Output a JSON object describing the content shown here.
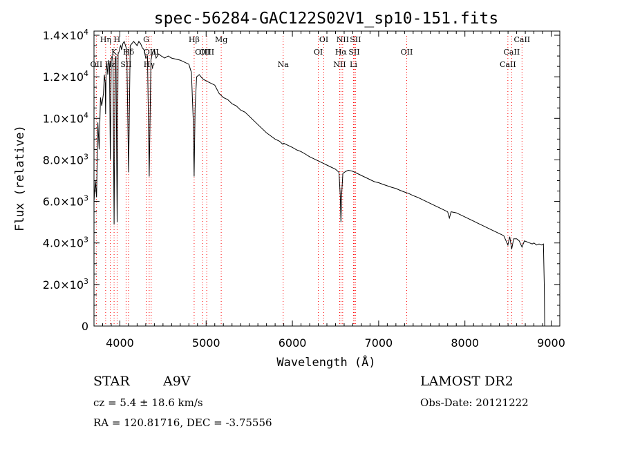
{
  "chart_data": {
    "type": "line",
    "title": "spec-56284-GAC122S02V1_sp10-151.fits",
    "xlabel": "Wavelength (Å)",
    "ylabel": "Flux (relative)",
    "xlim": [
      3700,
      9100
    ],
    "ylim": [
      0,
      14200
    ],
    "xticks": [
      4000,
      5000,
      6000,
      7000,
      8000,
      9000
    ],
    "xtick_labels": [
      "4000",
      "5000",
      "6000",
      "7000",
      "8000",
      "9000"
    ],
    "yticks": [
      0,
      2000,
      4000,
      6000,
      8000,
      10000,
      12000,
      14000
    ],
    "ytick_labels": [
      {
        "mant": "0",
        "exp": ""
      },
      {
        "mant": "2.0×10",
        "exp": "3"
      },
      {
        "mant": "4.0×10",
        "exp": "3"
      },
      {
        "mant": "6.0×10",
        "exp": "3"
      },
      {
        "mant": "8.0×10",
        "exp": "3"
      },
      {
        "mant": "1.0×10",
        "exp": "4"
      },
      {
        "mant": "1.2×10",
        "exp": "4"
      },
      {
        "mant": "1.4×10",
        "exp": "4"
      }
    ],
    "grid": false,
    "series": [
      {
        "color": "#000000",
        "points": [
          [
            3700,
            6000
          ],
          [
            3715,
            7000
          ],
          [
            3730,
            6200
          ],
          [
            3745,
            9800
          ],
          [
            3760,
            8500
          ],
          [
            3775,
            11000
          ],
          [
            3790,
            10600
          ],
          [
            3800,
            10900
          ],
          [
            3810,
            11200
          ],
          [
            3820,
            12100
          ],
          [
            3830,
            11700
          ],
          [
            3835,
            10200
          ],
          [
            3840,
            12300
          ],
          [
            3850,
            12600
          ],
          [
            3860,
            12100
          ],
          [
            3870,
            12800
          ],
          [
            3880,
            12500
          ],
          [
            3889,
            8000
          ],
          [
            3900,
            12900
          ],
          [
            3910,
            13000
          ],
          [
            3920,
            12700
          ],
          [
            3933,
            4900
          ],
          [
            3945,
            12800
          ],
          [
            3955,
            13000
          ],
          [
            3968,
            5000
          ],
          [
            3980,
            13100
          ],
          [
            3990,
            13200
          ],
          [
            4000,
            13400
          ],
          [
            4010,
            13500
          ],
          [
            4020,
            13300
          ],
          [
            4035,
            13600
          ],
          [
            4050,
            13700
          ],
          [
            4065,
            13500
          ],
          [
            4080,
            13300
          ],
          [
            4101,
            7400
          ],
          [
            4120,
            13500
          ],
          [
            4140,
            13600
          ],
          [
            4160,
            13700
          ],
          [
            4180,
            13600
          ],
          [
            4200,
            13500
          ],
          [
            4220,
            13700
          ],
          [
            4240,
            13600
          ],
          [
            4260,
            13400
          ],
          [
            4280,
            13300
          ],
          [
            4300,
            12900
          ],
          [
            4320,
            13000
          ],
          [
            4340,
            7200
          ],
          [
            4360,
            12800
          ],
          [
            4380,
            13200
          ],
          [
            4400,
            13300
          ],
          [
            4420,
            12900
          ],
          [
            4450,
            13100
          ],
          [
            4480,
            13000
          ],
          [
            4520,
            12900
          ],
          [
            4560,
            13000
          ],
          [
            4600,
            12900
          ],
          [
            4650,
            12850
          ],
          [
            4700,
            12800
          ],
          [
            4750,
            12700
          ],
          [
            4800,
            12600
          ],
          [
            4830,
            12200
          ],
          [
            4850,
            10000
          ],
          [
            4861,
            7200
          ],
          [
            4872,
            10500
          ],
          [
            4890,
            12000
          ],
          [
            4920,
            12100
          ],
          [
            4960,
            11900
          ],
          [
            5000,
            11800
          ],
          [
            5050,
            11700
          ],
          [
            5100,
            11600
          ],
          [
            5150,
            11200
          ],
          [
            5200,
            11000
          ],
          [
            5250,
            10900
          ],
          [
            5300,
            10700
          ],
          [
            5350,
            10600
          ],
          [
            5400,
            10400
          ],
          [
            5450,
            10300
          ],
          [
            5500,
            10100
          ],
          [
            5550,
            9900
          ],
          [
            5600,
            9700
          ],
          [
            5650,
            9500
          ],
          [
            5700,
            9300
          ],
          [
            5750,
            9150
          ],
          [
            5800,
            9000
          ],
          [
            5850,
            8900
          ],
          [
            5890,
            8750
          ],
          [
            5900,
            8800
          ],
          [
            5950,
            8700
          ],
          [
            6000,
            8600
          ],
          [
            6050,
            8480
          ],
          [
            6100,
            8400
          ],
          [
            6150,
            8280
          ],
          [
            6200,
            8150
          ],
          [
            6250,
            8050
          ],
          [
            6300,
            7950
          ],
          [
            6350,
            7850
          ],
          [
            6400,
            7750
          ],
          [
            6450,
            7650
          ],
          [
            6500,
            7550
          ],
          [
            6540,
            7400
          ],
          [
            6555,
            6300
          ],
          [
            6563,
            5000
          ],
          [
            6571,
            6300
          ],
          [
            6585,
            7350
          ],
          [
            6620,
            7450
          ],
          [
            6650,
            7500
          ],
          [
            6700,
            7450
          ],
          [
            6750,
            7350
          ],
          [
            6800,
            7250
          ],
          [
            6850,
            7150
          ],
          [
            6900,
            7050
          ],
          [
            6950,
            6950
          ],
          [
            7000,
            6900
          ],
          [
            7050,
            6820
          ],
          [
            7100,
            6750
          ],
          [
            7150,
            6680
          ],
          [
            7200,
            6620
          ],
          [
            7250,
            6530
          ],
          [
            7300,
            6450
          ],
          [
            7350,
            6380
          ],
          [
            7400,
            6280
          ],
          [
            7450,
            6200
          ],
          [
            7500,
            6100
          ],
          [
            7550,
            6000
          ],
          [
            7600,
            5900
          ],
          [
            7650,
            5800
          ],
          [
            7700,
            5700
          ],
          [
            7750,
            5600
          ],
          [
            7800,
            5500
          ],
          [
            7820,
            5200
          ],
          [
            7840,
            5500
          ],
          [
            7900,
            5450
          ],
          [
            7950,
            5350
          ],
          [
            8000,
            5250
          ],
          [
            8050,
            5150
          ],
          [
            8100,
            5050
          ],
          [
            8150,
            4950
          ],
          [
            8200,
            4850
          ],
          [
            8250,
            4750
          ],
          [
            8300,
            4650
          ],
          [
            8350,
            4550
          ],
          [
            8400,
            4450
          ],
          [
            8450,
            4350
          ],
          [
            8498,
            3900
          ],
          [
            8520,
            4300
          ],
          [
            8542,
            3700
          ],
          [
            8565,
            4200
          ],
          [
            8600,
            4200
          ],
          [
            8630,
            4100
          ],
          [
            8662,
            3800
          ],
          [
            8690,
            4100
          ],
          [
            8720,
            4050
          ],
          [
            8750,
            4000
          ],
          [
            8780,
            3950
          ],
          [
            8800,
            4000
          ],
          [
            8830,
            3900
          ],
          [
            8860,
            3950
          ],
          [
            8890,
            3900
          ],
          [
            8910,
            3950
          ],
          [
            8920,
            2000
          ],
          [
            8925,
            0
          ]
        ]
      }
    ],
    "lines": [
      {
        "label": "OII",
        "x": 3727,
        "row": 3
      },
      {
        "label": "Hη",
        "x": 3835,
        "row": 0
      },
      {
        "label": "Hε",
        "x": 3889,
        "row": 3
      },
      {
        "label": "K",
        "x": 3933,
        "row": 1
      },
      {
        "label": "H",
        "x": 3968,
        "row": 0
      },
      {
        "label": "SII",
        "x": 4072,
        "row": 3
      },
      {
        "label": "Hδ",
        "x": 4101,
        "row": 1
      },
      {
        "label": "G",
        "x": 4305,
        "row": 0
      },
      {
        "label": "Hγ",
        "x": 4340,
        "row": 3
      },
      {
        "label": "OIII",
        "x": 4363,
        "row": 1
      },
      {
        "label": "Hβ",
        "x": 4861,
        "row": 0
      },
      {
        "label": "OIII",
        "x": 4959,
        "row": 2
      },
      {
        "label": "OIII",
        "x": 5007,
        "row": 1
      },
      {
        "label": "Mg",
        "x": 5175,
        "row": 0
      },
      {
        "label": "Na",
        "x": 5893,
        "row": 3
      },
      {
        "label": "OI",
        "x": 6300,
        "row": 1
      },
      {
        "label": "OI",
        "x": 6364,
        "row": 0
      },
      {
        "label": "NII",
        "x": 6548,
        "row": 3
      },
      {
        "label": "Hα",
        "x": 6563,
        "row": 1
      },
      {
        "label": "NII",
        "x": 6583,
        "row": 0
      },
      {
        "label": "Li",
        "x": 6708,
        "row": 3
      },
      {
        "label": "SII",
        "x": 6716,
        "row": 1
      },
      {
        "label": "SII",
        "x": 6731,
        "row": 0
      },
      {
        "label": "OII",
        "x": 7325,
        "row": 1
      },
      {
        "label": "CaII",
        "x": 8498,
        "row": 3
      },
      {
        "label": "CaII",
        "x": 8542,
        "row": 1
      },
      {
        "label": "CaII",
        "x": 8662,
        "row": 0
      }
    ],
    "line_color": "#ff0000"
  },
  "info": {
    "class": "STAR",
    "subclass": "A9V",
    "cz": "cz = 5.4 ± 18.6 km/s",
    "radec": "RA = 120.81716, DEC =  -3.75556",
    "survey": "LAMOST DR2",
    "obs_date": "Obs-Date: 20121222"
  }
}
